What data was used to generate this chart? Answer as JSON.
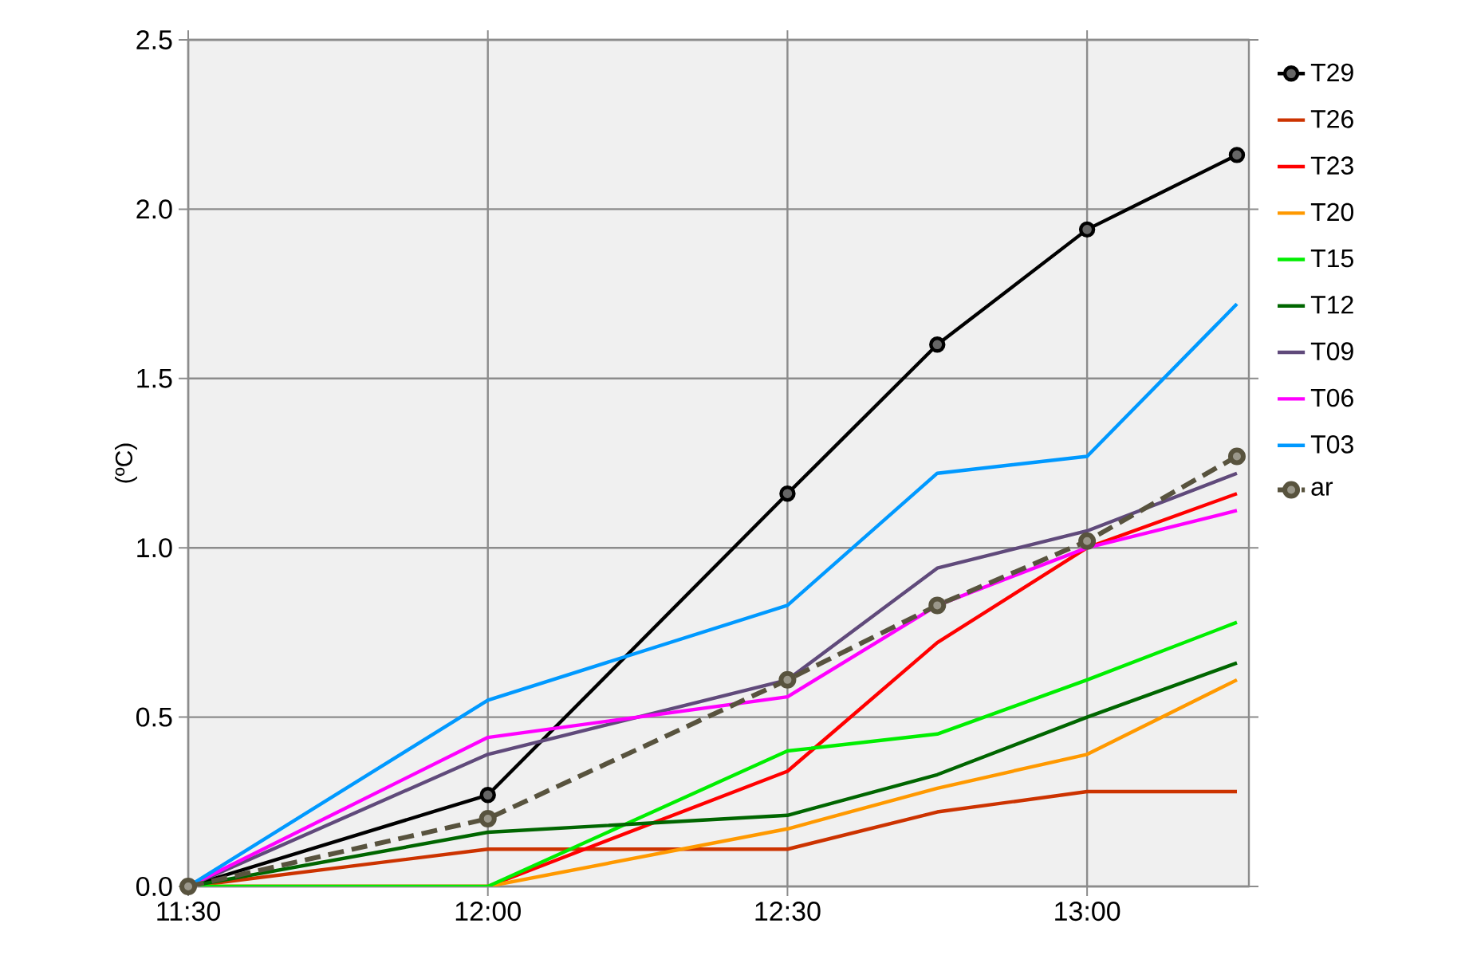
{
  "chart_data": {
    "type": "line",
    "ylabel": "(ºC)",
    "xlim": [
      11.5,
      13.27
    ],
    "ylim": [
      0,
      2.5
    ],
    "xticks": [
      {
        "value": 11.5,
        "label": "11:30"
      },
      {
        "value": 12.0,
        "label": "12:00"
      },
      {
        "value": 12.5,
        "label": "12:30"
      },
      {
        "value": 13.0,
        "label": "13:00"
      }
    ],
    "yticks": [
      {
        "value": 0,
        "label": "0.0"
      },
      {
        "value": 0.5,
        "label": "0.5"
      },
      {
        "value": 1.0,
        "label": "1.0"
      },
      {
        "value": 1.5,
        "label": "1.5"
      },
      {
        "value": 2.0,
        "label": "2.0"
      },
      {
        "value": 2.5,
        "label": "2.5"
      }
    ],
    "x": [
      11.5,
      12.0,
      12.5,
      12.75,
      13.0,
      13.25
    ],
    "grid": true,
    "legend": "right",
    "series": [
      {
        "name": "T29",
        "color": "#000000",
        "marker": "circle",
        "values": [
          0,
          0.27,
          1.16,
          1.6,
          1.94,
          2.16
        ]
      },
      {
        "name": "T26",
        "color": "#cc3300",
        "values": [
          0,
          0.11,
          0.11,
          0.22,
          0.28,
          0.28
        ]
      },
      {
        "name": "T23",
        "color": "#ff0000",
        "values": [
          0,
          0,
          0.34,
          0.72,
          1.0,
          1.16
        ]
      },
      {
        "name": "T20",
        "color": "#ff9900",
        "values": [
          0,
          0,
          0.17,
          0.29,
          0.39,
          0.61
        ]
      },
      {
        "name": "T15",
        "color": "#00ee00",
        "values": [
          0,
          0,
          0.4,
          0.45,
          0.61,
          0.78
        ]
      },
      {
        "name": "T12",
        "color": "#006600",
        "values": [
          0,
          0.16,
          0.21,
          0.33,
          0.5,
          0.66
        ]
      },
      {
        "name": "T09",
        "color": "#604a7b",
        "values": [
          0,
          0.39,
          0.61,
          0.94,
          1.05,
          1.22
        ]
      },
      {
        "name": "T06",
        "color": "#ff00ff",
        "values": [
          0,
          0.44,
          0.56,
          0.83,
          1.0,
          1.11
        ]
      },
      {
        "name": "T03",
        "color": "#0099ff",
        "values": [
          0,
          0.55,
          0.83,
          1.22,
          1.27,
          1.72
        ]
      },
      {
        "name": "ar",
        "color": "#58533e",
        "marker": "circle",
        "line_style": "dashed",
        "values": [
          0,
          0.2,
          0.61,
          0.83,
          1.02,
          1.27
        ]
      }
    ]
  }
}
